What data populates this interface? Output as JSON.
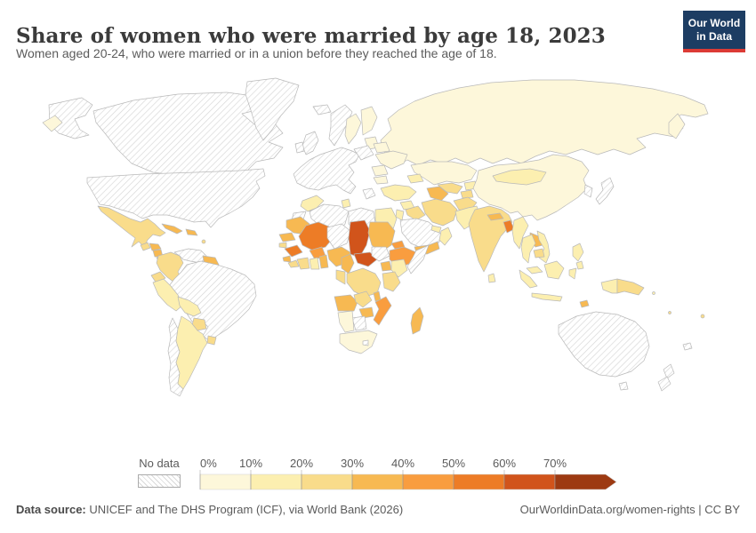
{
  "header": {
    "title": "Share of women who were married by age 18, 2023",
    "subtitle": "Women aged 20-24, who were married or in a union before they reached the age of 18."
  },
  "logo": {
    "line1": "Our World",
    "line2": "in Data",
    "bg_color": "#1d3d63",
    "accent_color": "#dc3b35"
  },
  "legend": {
    "no_data_label": "No data",
    "tick_labels": [
      "0%",
      "10%",
      "20%",
      "30%",
      "40%",
      "50%",
      "60%",
      "70%"
    ],
    "bins": [
      {
        "id": "b0",
        "label": "0-10%",
        "color": "#fdf7da"
      },
      {
        "id": "b1",
        "label": "10-20%",
        "color": "#fcefb0"
      },
      {
        "id": "b2",
        "label": "20-30%",
        "color": "#f9dc8b"
      },
      {
        "id": "b3",
        "label": "30-40%",
        "color": "#f7b952"
      },
      {
        "id": "b4",
        "label": "40-50%",
        "color": "#f99d3f"
      },
      {
        "id": "b5",
        "label": "50-60%",
        "color": "#ed7c26"
      },
      {
        "id": "b6",
        "label": "60-70%",
        "color": "#d1541b"
      },
      {
        "id": "b7",
        "label": "70%+",
        "color": "#9d3a12"
      }
    ]
  },
  "map": {
    "border_color": "#b9b9b9",
    "hatch_line_color": "#d6d6d6",
    "regions": {
      "alaska": "nodata",
      "canada": "nodata",
      "usa": "nodata",
      "greenland": "nodata",
      "mexico": "b2",
      "guatemala": "b2",
      "honduras": "b3",
      "nicaragua": "b3",
      "costa-rica": "b1",
      "panama": "b1",
      "cuba": "b3",
      "hispaniola": "b3",
      "antilles": "b2",
      "colombia": "b2",
      "venezuela": "nodata",
      "guyana-suriname": "b3",
      "ecuador": "b2",
      "peru": "b1",
      "brazil": "nodata",
      "bolivia": "b1",
      "paraguay": "b2",
      "uruguay": "b2",
      "argentina": "b1",
      "chile": "nodata",
      "iceland": "nodata",
      "norway": "nodata",
      "sweden": "b0",
      "finland": "b0",
      "baltics": "b0",
      "uk": "nodata",
      "ireland": "nodata",
      "west-europe": "nodata",
      "greece": "nodata",
      "poland": "nodata",
      "belarus": "b0",
      "ukraine": "b0",
      "romania": "b0",
      "bulgaria": "b0",
      "russia": "b0",
      "chukotka": "b0",
      "kamchatka": "b0",
      "kazakhstan": "b0",
      "uzbekistan": "b2",
      "turkmenistan": "b3",
      "kyrgyzstan": "b1",
      "tajikistan": "b2",
      "caucasus": "b1",
      "turkey": "b1",
      "syria": "b1",
      "iraq": "b2",
      "jordan-israel": "b1",
      "saudi-arabia": "nodata",
      "yemen": "b3",
      "oman": "b1",
      "uae": "b1",
      "iran": "b2",
      "afghanistan": "b2",
      "pakistan": "b1",
      "india": "b2",
      "nepal": "b3",
      "bangladesh": "b5",
      "sri-lanka": "b1",
      "myanmar": "b1",
      "thailand": "b1",
      "laos": "b3",
      "cambodia": "b2",
      "vietnam": "b1",
      "china": "b0",
      "mongolia": "b1",
      "korea": "nodata",
      "japan": "nodata",
      "philippines": "b1",
      "malaysia": "b1",
      "sumatra": "b1",
      "java": "b1",
      "borneo": "b1",
      "sulawesi": "b1",
      "timor": "b3",
      "papua-indonesia": "b1",
      "papua-new-guinea": "b2",
      "solomon": "b1",
      "vanuatu": "b2",
      "fiji": "b2",
      "new-caledonia": "nodata",
      "australia": "nodata",
      "tasmania": "nodata",
      "new-zealand": "nodata",
      "morocco": "b1",
      "tunisia": "b1",
      "western-sahara": "nodata",
      "algeria": "nodata",
      "libya": "nodata",
      "egypt": "b1",
      "mauritania": "b3",
      "senegal": "b3",
      "guinea-bissau": "b2",
      "guinea": "b5",
      "sierra-leone": "b3",
      "liberia": "b2",
      "mali": "b5",
      "burkina-faso": "b4",
      "cote-divoire": "b2",
      "ghana": "b1",
      "togo-benin": "b3",
      "niger": "nodata",
      "nigeria": "b3",
      "chad": "b6",
      "sudan": "b3",
      "eritrea": "b4",
      "ethiopia": "b4",
      "somalia": "nodata",
      "south-sudan": "nodata",
      "central-african-republic": "b6",
      "cameroon": "b3",
      "uganda": "b3",
      "kenya": "b1",
      "congo-gabon": "b2",
      "drc": "b2",
      "tanzania": "b2",
      "angola": "b3",
      "zambia": "b2",
      "malawi": "b3",
      "mozambique": "b4",
      "zimbabwe": "b3",
      "botswana": "nodata",
      "namibia": "b0",
      "south-africa": "b0",
      "lesotho": "nodata",
      "madagascar": "b3"
    }
  },
  "chart_data": {
    "type": "heatmap",
    "subtype": "choropleth-world-map",
    "title": "Share of women who were married by age 18, 2023",
    "subtitle": "Women aged 20-24, who were married or in a union before they reached the age of 18.",
    "unit": "%",
    "legend_position": "bottom",
    "color_scale_bins": [
      "0-10%",
      "10-20%",
      "20-30%",
      "30-40%",
      "40-50%",
      "50-60%",
      "60-70%",
      "70%+"
    ],
    "values_by_region_bin": {
      "Chad": "60-70%",
      "Central African Republic": "60-70%",
      "Mali": "50-60%",
      "Guinea": "50-60%",
      "Bangladesh": "50-60%",
      "Burkina Faso": "40-50%",
      "Ethiopia": "40-50%",
      "Eritrea": "40-50%",
      "Mozambique": "40-50%",
      "Mauritania": "30-40%",
      "Senegal": "30-40%",
      "Nigeria": "30-40%",
      "Sudan": "30-40%",
      "Cameroon": "30-40%",
      "Uganda": "30-40%",
      "Angola": "30-40%",
      "Malawi": "30-40%",
      "Zimbabwe": "30-40%",
      "Madagascar": "30-40%",
      "Yemen": "30-40%",
      "Nepal": "30-40%",
      "Laos": "30-40%",
      "Turkmenistan": "30-40%",
      "Honduras": "30-40%",
      "Nicaragua": "30-40%",
      "Cuba": "30-40%",
      "Dominican Republic": "30-40%",
      "Guyana": "30-40%",
      "Mexico": "20-30%",
      "Colombia": "20-30%",
      "Ecuador": "20-30%",
      "Paraguay": "20-30%",
      "Uruguay": "20-30%",
      "India": "20-30%",
      "Iran": "20-30%",
      "Iraq": "20-30%",
      "Afghanistan": "20-30%",
      "Uzbekistan": "20-30%",
      "DR Congo": "20-30%",
      "Tanzania": "20-30%",
      "Zambia": "20-30%",
      "Papua New Guinea": "20-30%",
      "Peru": "10-20%",
      "Bolivia": "10-20%",
      "Argentina": "10-20%",
      "Turkey": "10-20%",
      "Morocco": "10-20%",
      "Egypt": "10-20%",
      "Kenya": "10-20%",
      "Ghana": "10-20%",
      "Pakistan": "10-20%",
      "Myanmar": "10-20%",
      "Thailand": "10-20%",
      "Vietnam": "10-20%",
      "Philippines": "10-20%",
      "Indonesia": "10-20%",
      "Mongolia": "10-20%",
      "Russia": "0-10%",
      "China": "0-10%",
      "Kazakhstan": "0-10%",
      "Ukraine": "0-10%",
      "Sweden": "0-10%",
      "Finland": "0-10%",
      "Romania": "0-10%",
      "Namibia": "0-10%",
      "South Africa": "0-10%",
      "United States": "No data",
      "Canada": "No data",
      "Greenland": "No data",
      "Brazil": "No data",
      "Venezuela": "No data",
      "Chile": "No data",
      "Western Europe": "No data",
      "Algeria": "No data",
      "Libya": "No data",
      "Niger": "No data",
      "Saudi Arabia": "No data",
      "Somalia": "No data",
      "South Sudan": "No data",
      "Botswana": "No data",
      "Japan": "No data",
      "Australia": "No data",
      "New Zealand": "No data"
    }
  },
  "footer": {
    "source_label": "Data source:",
    "source_text": " UNICEF and The DHS Program (ICF), via World Bank (2026)",
    "attribution": "OurWorldinData.org/women-rights | CC BY"
  }
}
